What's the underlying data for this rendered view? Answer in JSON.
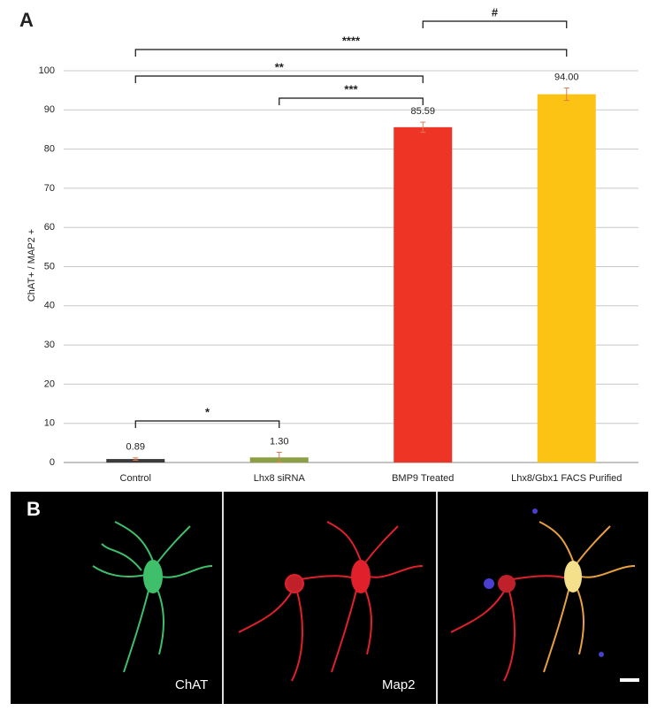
{
  "chart_data": {
    "type": "bar",
    "y_label": "ChAT+ / MAP2 +",
    "categories": [
      "Control",
      "Lhx8 siRNA",
      "BMP9 Treated",
      "Lhx8/Gbx1 FACS Purified"
    ],
    "values": [
      0.89,
      1.3,
      85.59,
      94.0
    ],
    "value_labels": [
      "0.89",
      "1.30",
      "85.59",
      "94.00"
    ],
    "errors": [
      0.3,
      1.3,
      1.3,
      1.6
    ],
    "colors": [
      "#3b3b3b",
      "#8aa043",
      "#ee3424",
      "#fdc314"
    ],
    "error_color": "#e07a50",
    "ylim": [
      0,
      100
    ],
    "yticks": [
      0,
      10,
      20,
      30,
      40,
      50,
      60,
      70,
      80,
      90,
      100
    ],
    "grid": true,
    "annotations": [
      "*",
      "***",
      "**",
      "****",
      "#"
    ]
  },
  "figure": {
    "panel_a_label": "A",
    "panel_b_label": "B",
    "channels": [
      "ChAT",
      "Map2"
    ]
  }
}
